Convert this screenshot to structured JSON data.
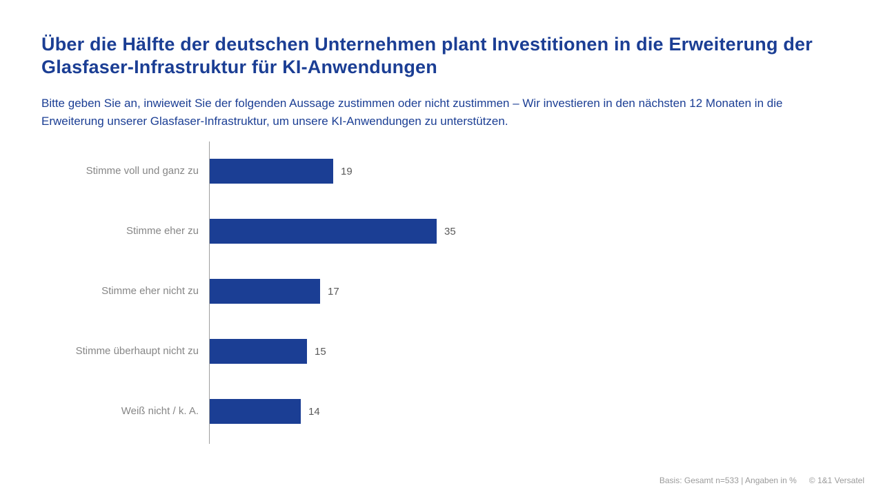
{
  "colors": {
    "brand_blue": "#1b3e94",
    "bar_blue": "#1b3e94",
    "label_gray": "#868686",
    "value_gray": "#595959",
    "axis_gray": "#9e9e9e",
    "footer_gray": "#9b9b9b"
  },
  "header": {
    "title": "Über die Hälfte der deutschen Unternehmen plant Investitionen in die Erweiterung der Glasfaser-Infrastruktur für KI-Anwendungen",
    "subtitle": "Bitte geben Sie an, inwieweit Sie der folgenden Aussage zustimmen oder nicht zustimmen – Wir investieren in den nächsten 12 Monaten in die Erweiterung unserer Glasfaser-Infrastruktur, um unsere KI-Anwendungen zu unterstützen."
  },
  "chart_data": {
    "type": "bar",
    "orientation": "horizontal",
    "categories": [
      "Stimme voll und ganz zu",
      "Stimme eher zu",
      "Stimme eher nicht zu",
      "Stimme überhaupt nicht zu",
      "Weiß nicht / k. A."
    ],
    "values": [
      19,
      35,
      17,
      15,
      14
    ],
    "unit": "%",
    "value_labels_shown": true,
    "xlim": [
      0,
      37
    ],
    "grid": false,
    "legend": null,
    "bar_color": "#1b3e94",
    "title": "Über die Hälfte der deutschen Unternehmen plant Investitionen in die Erweiterung der Glasfaser-Infrastruktur für KI-Anwendungen"
  },
  "footer": {
    "basis": "Basis: Gesamt n=533 | Angaben in %",
    "copyright": "© 1&1 Versatel"
  }
}
